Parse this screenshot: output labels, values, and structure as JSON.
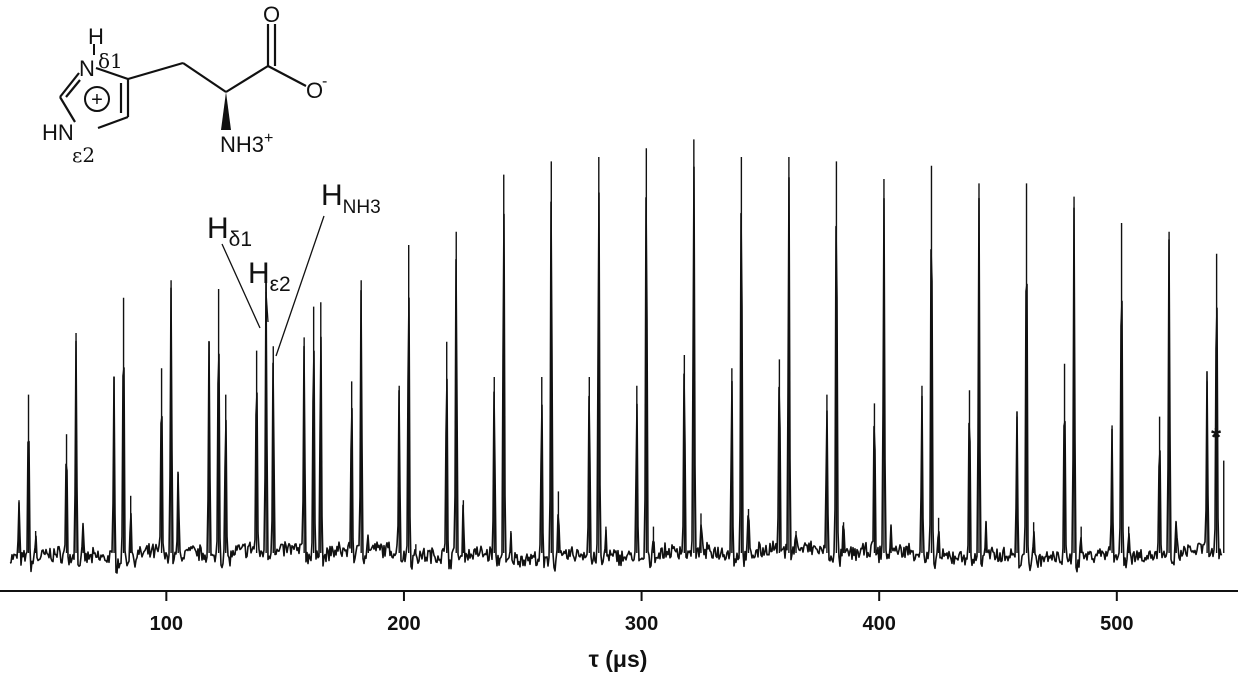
{
  "chart_data": {
    "type": "line",
    "title": "",
    "xlabel": "τ (μs)",
    "ylabel": "",
    "xlim": [
      30,
      551
    ],
    "ylim": [
      -0.3,
      10.5
    ],
    "xticks": [
      100,
      200,
      300,
      400,
      500
    ],
    "xtick_labels": [
      "100",
      "200",
      "300",
      "400",
      "500"
    ],
    "yaxis_visible": false,
    "grid": false,
    "legend": "none",
    "period_us": 20,
    "first_echo_us": 42,
    "echo_offsets_us": [
      -4,
      0,
      3
    ],
    "series": [
      {
        "name": "Hδ1",
        "x": [
          38,
          58,
          78,
          98,
          118,
          138,
          158,
          178,
          198,
          218,
          238,
          258,
          278,
          298,
          318,
          338,
          358,
          378,
          398,
          418,
          438,
          458,
          478,
          498,
          518,
          538
        ],
        "values": [
          1.2,
          2.7,
          4.0,
          4.2,
          4.8,
          4.6,
          4.9,
          3.9,
          3.8,
          4.8,
          4.0,
          4.0,
          4.0,
          3.8,
          4.5,
          4.2,
          4.4,
          3.6,
          3.4,
          3.8,
          3.7,
          3.1,
          4.3,
          2.9,
          3.1,
          3.9
        ]
      },
      {
        "name": "Hε2",
        "x": [
          42,
          62,
          82,
          102,
          122,
          142,
          162,
          182,
          202,
          222,
          242,
          262,
          282,
          302,
          322,
          342,
          362,
          382,
          402,
          422,
          442,
          462,
          482,
          502,
          522,
          542
        ],
        "values": [
          3.6,
          5.0,
          5.8,
          6.2,
          6.0,
          6.3,
          5.6,
          6.2,
          7.0,
          7.3,
          8.6,
          8.9,
          9.0,
          9.2,
          9.4,
          9.0,
          9.0,
          8.9,
          8.5,
          8.8,
          8.4,
          8.4,
          8.1,
          7.5,
          7.3,
          6.8
        ]
      },
      {
        "name": "HNH3",
        "x": [
          45,
          65,
          85,
          105,
          125,
          145,
          165,
          185,
          205,
          225,
          245,
          265,
          285,
          305,
          325,
          345,
          365,
          385,
          405,
          425,
          445,
          465,
          485,
          505,
          525,
          545
        ],
        "values": [
          0.5,
          0.6,
          1.3,
          1.8,
          3.6,
          4.7,
          5.7,
          0.3,
          0.2,
          1.2,
          0.5,
          1.4,
          0.6,
          0.6,
          0.9,
          1.0,
          0.5,
          0.7,
          0.6,
          0.8,
          0.7,
          0.7,
          0.6,
          0.6,
          0.7,
          2.1
        ]
      }
    ],
    "annotations": [
      {
        "label_base": "H",
        "label_sub": "δ1",
        "points_to_us": 138
      },
      {
        "label_base": "H",
        "label_sub": "ε2",
        "points_to_us": 142
      },
      {
        "label_base": "H",
        "label_sub": "NH3",
        "points_to_us": 145
      },
      {
        "label": "*",
        "points_to_us": 545
      }
    ],
    "inset_structure": {
      "name": "protonated histidine",
      "atom_labels": [
        "H",
        "N",
        "δ1",
        "HN",
        "ε2",
        "+",
        "O",
        "O",
        "-",
        "NH3",
        "+"
      ]
    }
  }
}
